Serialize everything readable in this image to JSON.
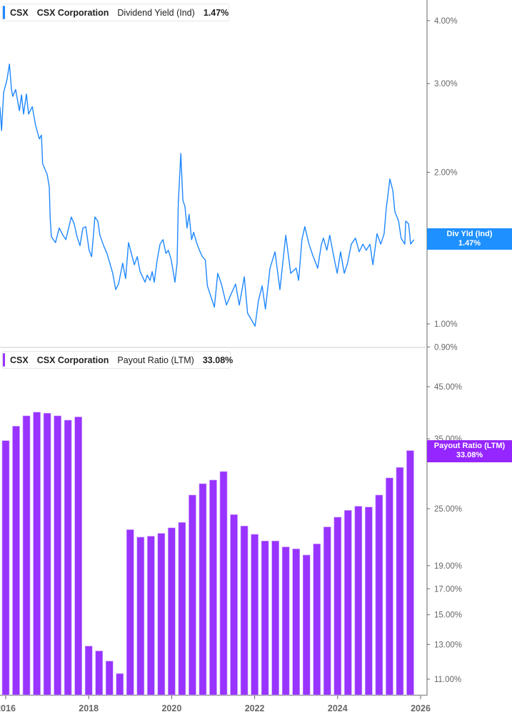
{
  "colors": {
    "yield_line": "#1e88ff",
    "payout_bars": "#9933ff",
    "axis": "#999999",
    "tick_text": "#666666"
  },
  "top_legend": {
    "ticker": "CSX",
    "company": "CSX Corporation",
    "metric": "Dividend Yield (Ind)",
    "value": "1.47%"
  },
  "bottom_legend": {
    "ticker": "CSX",
    "company": "CSX Corporation",
    "metric": "Payout Ratio (LTM)",
    "value": "33.08%"
  },
  "top_flag": {
    "label": "Div Yld (Ind)",
    "value": "1.47%"
  },
  "bottom_flag": {
    "label": "Payout Ratio (LTM)",
    "value": "33.08%"
  },
  "chart_data": [
    {
      "type": "line",
      "series_name": "Dividend Yield (Ind)",
      "y_scale": "log",
      "ylim": [
        0.88,
        4.3
      ],
      "y_ticks": [
        {
          "v": 4.0,
          "label": "4.00%"
        },
        {
          "v": 3.0,
          "label": "3.00%"
        },
        {
          "v": 2.0,
          "label": "2.00%"
        },
        {
          "v": 1.0,
          "label": "1.00%"
        },
        {
          "v": 0.9,
          "label": "0.90%"
        }
      ],
      "x": [
        2015.86,
        2015.9,
        2015.95,
        2016.03,
        2016.09,
        2016.14,
        2016.17,
        2016.24,
        2016.33,
        2016.38,
        2016.43,
        2016.5,
        2016.55,
        2016.64,
        2016.72,
        2016.81,
        2016.86,
        2016.89,
        2017.0,
        2017.05,
        2017.07,
        2017.1,
        2017.2,
        2017.29,
        2017.38,
        2017.45,
        2017.58,
        2017.65,
        2017.72,
        2017.79,
        2017.86,
        2017.93,
        2018.01,
        2018.07,
        2018.15,
        2018.22,
        2018.27,
        2018.36,
        2018.44,
        2018.58,
        2018.65,
        2018.72,
        2018.82,
        2018.89,
        2018.96,
        2019.03,
        2019.1,
        2019.17,
        2019.24,
        2019.36,
        2019.41,
        2019.48,
        2019.53,
        2019.58,
        2019.65,
        2019.72,
        2019.79,
        2019.86,
        2019.92,
        2019.99,
        2020.08,
        2020.13,
        2020.16,
        2020.22,
        2020.27,
        2020.32,
        2020.37,
        2020.42,
        2020.48,
        2020.53,
        2020.6,
        2020.67,
        2020.74,
        2020.81,
        2020.86,
        2021.03,
        2021.11,
        2021.2,
        2021.32,
        2021.42,
        2021.54,
        2021.63,
        2021.75,
        2021.83,
        2022.01,
        2022.09,
        2022.18,
        2022.26,
        2022.37,
        2022.49,
        2022.61,
        2022.75,
        2022.87,
        2023.0,
        2023.06,
        2023.14,
        2023.21,
        2023.31,
        2023.4,
        2023.52,
        2023.61,
        2023.66,
        2023.74,
        2023.81,
        2023.9,
        2023.99,
        2024.07,
        2024.16,
        2024.24,
        2024.33,
        2024.43,
        2024.52,
        2024.61,
        2024.69,
        2024.78,
        2024.85,
        2024.95,
        2025.04,
        2025.12,
        2025.17,
        2025.26,
        2025.33,
        2025.38,
        2025.47,
        2025.53,
        2025.62,
        2025.64,
        2025.71,
        2025.76,
        2025.84
      ],
      "y": [
        2.7,
        2.42,
        2.88,
        3.05,
        3.28,
        2.92,
        2.83,
        2.92,
        2.65,
        2.85,
        2.61,
        2.86,
        2.61,
        2.7,
        2.48,
        2.33,
        2.37,
        2.08,
        1.98,
        1.87,
        1.63,
        1.49,
        1.45,
        1.55,
        1.5,
        1.47,
        1.63,
        1.58,
        1.49,
        1.43,
        1.55,
        1.56,
        1.4,
        1.36,
        1.63,
        1.6,
        1.5,
        1.43,
        1.38,
        1.26,
        1.17,
        1.2,
        1.32,
        1.23,
        1.45,
        1.38,
        1.31,
        1.36,
        1.27,
        1.21,
        1.25,
        1.22,
        1.27,
        1.21,
        1.34,
        1.44,
        1.47,
        1.38,
        1.4,
        1.34,
        1.21,
        1.32,
        1.74,
        2.18,
        1.76,
        1.71,
        1.55,
        1.65,
        1.47,
        1.52,
        1.45,
        1.4,
        1.36,
        1.34,
        1.19,
        1.08,
        1.26,
        1.2,
        1.09,
        1.14,
        1.2,
        1.09,
        1.24,
        1.05,
        0.99,
        1.11,
        1.19,
        1.07,
        1.29,
        1.39,
        1.17,
        1.5,
        1.26,
        1.29,
        1.22,
        1.47,
        1.56,
        1.44,
        1.37,
        1.29,
        1.44,
        1.48,
        1.4,
        1.5,
        1.37,
        1.26,
        1.39,
        1.26,
        1.32,
        1.44,
        1.48,
        1.39,
        1.44,
        1.4,
        1.44,
        1.31,
        1.51,
        1.44,
        1.51,
        1.69,
        1.94,
        1.84,
        1.67,
        1.6,
        1.48,
        1.44,
        1.6,
        1.58,
        1.44,
        1.47
      ]
    },
    {
      "type": "bar",
      "series_name": "Payout Ratio (LTM)",
      "y_scale": "log",
      "y_ticks": [
        {
          "v": 45,
          "label": "45.00%"
        },
        {
          "v": 35,
          "label": "35.00%"
        },
        {
          "v": 25,
          "label": "25.00%"
        },
        {
          "v": 19,
          "label": "19.00%"
        },
        {
          "v": 17,
          "label": "17.00%"
        },
        {
          "v": 15,
          "label": "15.00%"
        },
        {
          "v": 13,
          "label": "13.00%"
        },
        {
          "v": 11,
          "label": "11.00%"
        }
      ],
      "x_ticks": [
        "2016",
        "2018",
        "2020",
        "2022",
        "2024",
        "2026"
      ],
      "x": [
        2016.0,
        2016.25,
        2016.5,
        2016.75,
        2017.0,
        2017.25,
        2017.5,
        2017.75,
        2018.0,
        2018.25,
        2018.5,
        2018.75,
        2019.0,
        2019.25,
        2019.5,
        2019.75,
        2020.0,
        2020.25,
        2020.5,
        2020.75,
        2021.0,
        2021.25,
        2021.5,
        2021.75,
        2022.0,
        2022.25,
        2022.5,
        2022.75,
        2023.0,
        2023.25,
        2023.5,
        2023.75,
        2024.0,
        2024.25,
        2024.5,
        2024.75,
        2025.0,
        2025.25,
        2025.5,
        2025.75
      ],
      "values": [
        34.7,
        37.2,
        39.1,
        39.8,
        39.6,
        39.1,
        38.3,
        38.9,
        12.9,
        12.6,
        12.0,
        11.3,
        22.6,
        21.8,
        21.9,
        22.2,
        22.8,
        23.4,
        26.7,
        28.2,
        28.7,
        29.9,
        24.3,
        23.0,
        22.1,
        21.4,
        21.4,
        20.8,
        20.6,
        20.0,
        21.1,
        22.9,
        24.0,
        24.8,
        25.3,
        25.2,
        26.7,
        29.0,
        30.5,
        33.08
      ]
    }
  ]
}
